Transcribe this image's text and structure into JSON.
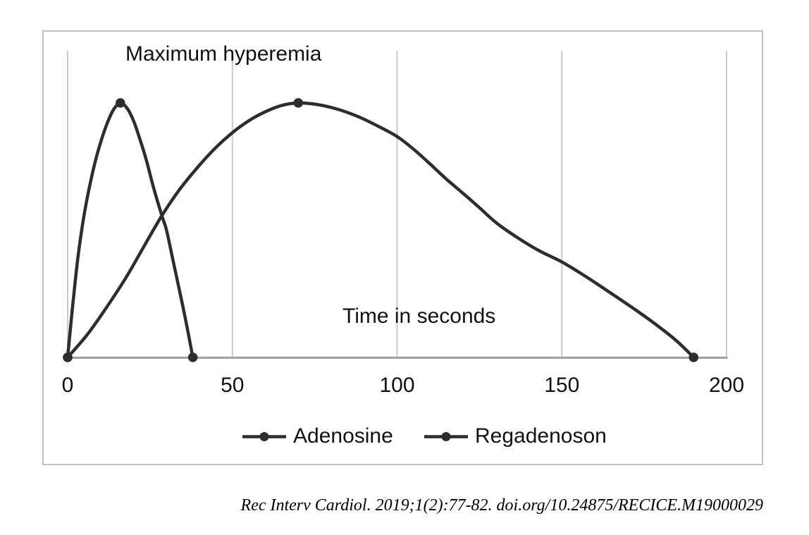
{
  "figure": {
    "title": "Maximum hyperemia",
    "x_axis_label": "Time in seconds",
    "x_tick_labels": [
      "0",
      "50",
      "100",
      "150",
      "200"
    ],
    "legend": {
      "items": [
        {
          "label": "Adenosine"
        },
        {
          "label": "Regadenoson"
        }
      ]
    },
    "citation": "Rec Interv Cardiol. 2019;1(2):77-82. doi.org/10.24875/RECICE.M19000029"
  },
  "colors": {
    "curve": "#2d2d2d",
    "grid": "#c9c9c9",
    "axis": "#a2a2a2",
    "frame": "#c2c2c2",
    "text": "#111111"
  },
  "chart_data": {
    "type": "line",
    "title": "Maximum hyperemia",
    "xlabel": "Time in seconds",
    "x_ticks": [
      0,
      50,
      100,
      150,
      200
    ],
    "xlim": [
      0,
      200
    ],
    "ylim": [
      0,
      1.2
    ],
    "y_scale_note": "y-axis unlabeled; values normalized so both curve peaks = 1.0",
    "grid": "vertical gridlines at each x tick",
    "legend_position": "bottom center",
    "series": [
      {
        "name": "Adenosine",
        "peak": {
          "x": 16,
          "y": 1.0
        },
        "end_x": 38,
        "markers": [
          [
            0,
            0
          ],
          [
            16,
            1
          ],
          [
            38,
            0
          ]
        ],
        "points": [
          [
            0,
            0
          ],
          [
            1.5,
            0.2
          ],
          [
            3,
            0.38
          ],
          [
            4.5,
            0.52
          ],
          [
            6,
            0.63
          ],
          [
            8,
            0.75
          ],
          [
            10,
            0.845
          ],
          [
            12,
            0.92
          ],
          [
            14,
            0.975
          ],
          [
            16,
            1
          ],
          [
            18,
            0.98
          ],
          [
            20,
            0.93
          ],
          [
            22,
            0.855
          ],
          [
            24,
            0.77
          ],
          [
            26,
            0.67
          ],
          [
            28.6,
            0.557
          ],
          [
            30,
            0.5
          ],
          [
            32,
            0.38
          ],
          [
            34,
            0.26
          ],
          [
            36,
            0.135
          ],
          [
            38,
            0
          ]
        ]
      },
      {
        "name": "Regadenoson",
        "peak": {
          "x": 70,
          "y": 1.0
        },
        "end_x": 190,
        "markers": [
          [
            0,
            0
          ],
          [
            70,
            1
          ],
          [
            190,
            0
          ]
        ],
        "points": [
          [
            0,
            0
          ],
          [
            6,
            0.09
          ],
          [
            12,
            0.2
          ],
          [
            18,
            0.32
          ],
          [
            24,
            0.455
          ],
          [
            28.6,
            0.557
          ],
          [
            34,
            0.66
          ],
          [
            40,
            0.755
          ],
          [
            45,
            0.825
          ],
          [
            50,
            0.883
          ],
          [
            55,
            0.93
          ],
          [
            60,
            0.965
          ],
          [
            65,
            0.99
          ],
          [
            70,
            1
          ],
          [
            76,
            0.993
          ],
          [
            82,
            0.975
          ],
          [
            88,
            0.947
          ],
          [
            94,
            0.91
          ],
          [
            100,
            0.868
          ],
          [
            105,
            0.818
          ],
          [
            110,
            0.76
          ],
          [
            115,
            0.7
          ],
          [
            120,
            0.645
          ],
          [
            125,
            0.588
          ],
          [
            130,
            0.53
          ],
          [
            136,
            0.475
          ],
          [
            143,
            0.42
          ],
          [
            150,
            0.375
          ],
          [
            157,
            0.32
          ],
          [
            164,
            0.26
          ],
          [
            172,
            0.19
          ],
          [
            179,
            0.125
          ],
          [
            185,
            0.063
          ],
          [
            190,
            0
          ]
        ]
      }
    ]
  }
}
